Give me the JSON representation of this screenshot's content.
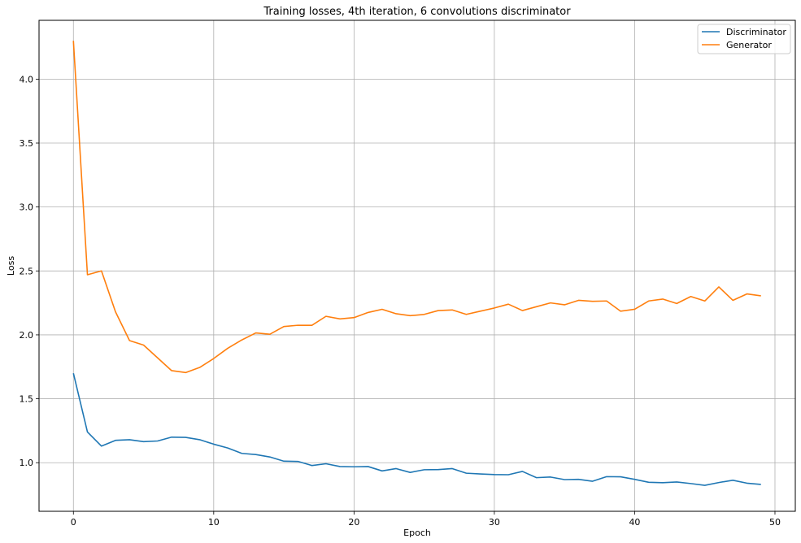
{
  "chart_data": {
    "type": "line",
    "title": "Training losses, 4th iteration, 6 convolutions discriminator",
    "xlabel": "Epoch",
    "ylabel": "Loss",
    "xlim": [
      -2.45,
      51.45
    ],
    "ylim": [
      0.62,
      4.46
    ],
    "xticks": [
      0,
      10,
      20,
      30,
      40,
      50
    ],
    "yticks": [
      1.0,
      1.5,
      2.0,
      2.5,
      3.0,
      3.5,
      4.0
    ],
    "xtick_labels": [
      "0",
      "10",
      "20",
      "30",
      "40",
      "50"
    ],
    "ytick_labels": [
      "1.0",
      "1.5",
      "2.0",
      "2.5",
      "3.0",
      "3.5",
      "4.0"
    ],
    "grid": true,
    "legend_position": "top-right",
    "x": [
      0,
      1,
      2,
      3,
      4,
      5,
      6,
      7,
      8,
      9,
      10,
      11,
      12,
      13,
      14,
      15,
      16,
      17,
      18,
      19,
      20,
      21,
      22,
      23,
      24,
      25,
      26,
      27,
      28,
      29,
      30,
      31,
      32,
      33,
      34,
      35,
      36,
      37,
      38,
      39,
      40,
      41,
      42,
      43,
      44,
      45,
      46,
      47,
      48,
      49
    ],
    "series": [
      {
        "name": "Discriminator",
        "color": "#1f77b4",
        "values": [
          1.7,
          1.24,
          1.13,
          1.175,
          1.18,
          1.165,
          1.17,
          1.2,
          1.198,
          1.18,
          1.145,
          1.115,
          1.073,
          1.064,
          1.045,
          1.012,
          1.01,
          0.978,
          0.992,
          0.97,
          0.968,
          0.97,
          0.936,
          0.954,
          0.924,
          0.945,
          0.946,
          0.954,
          0.918,
          0.912,
          0.907,
          0.906,
          0.932,
          0.883,
          0.888,
          0.868,
          0.87,
          0.855,
          0.891,
          0.89,
          0.87,
          0.847,
          0.844,
          0.849,
          0.837,
          0.823,
          0.845,
          0.863,
          0.84,
          0.83
        ]
      },
      {
        "name": "Generator",
        "color": "#ff7f0e",
        "values": [
          4.3,
          2.47,
          2.5,
          2.18,
          1.955,
          1.92,
          1.82,
          1.72,
          1.705,
          1.745,
          1.815,
          1.895,
          1.96,
          2.015,
          2.005,
          2.065,
          2.075,
          2.075,
          2.145,
          2.125,
          2.135,
          2.175,
          2.2,
          2.165,
          2.15,
          2.16,
          2.19,
          2.195,
          2.16,
          2.185,
          2.21,
          2.24,
          2.19,
          2.22,
          2.25,
          2.235,
          2.27,
          2.262,
          2.265,
          2.185,
          2.2,
          2.265,
          2.28,
          2.245,
          2.3,
          2.265,
          2.375,
          2.27,
          2.32,
          2.305
        ]
      }
    ]
  }
}
